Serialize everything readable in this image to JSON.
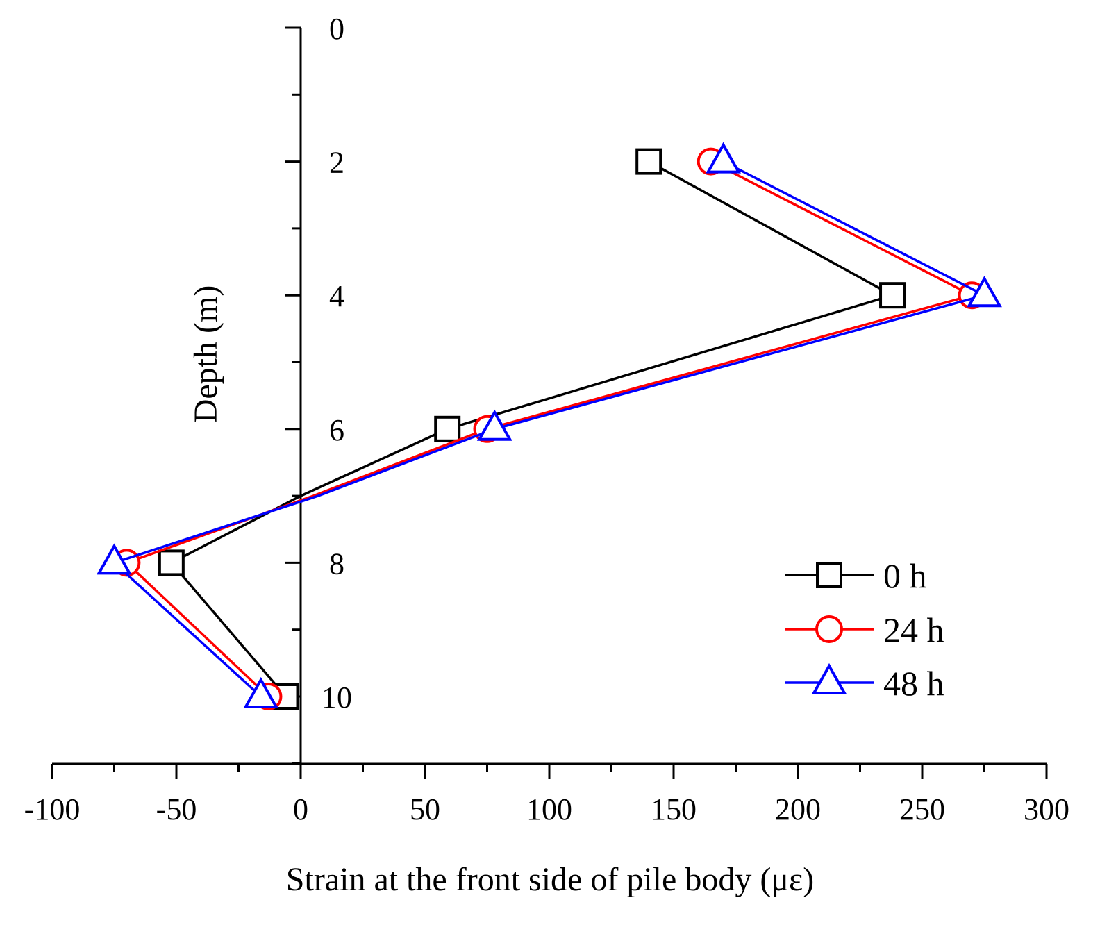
{
  "chart_data": {
    "type": "line",
    "xlabel": "Strain at the front side of pile body (με)",
    "ylabel": "Depth (m)",
    "xlim": [
      -100,
      300
    ],
    "ylim": [
      0,
      11
    ],
    "y_inverted": true,
    "x_ticks": [
      -100,
      -50,
      0,
      50,
      100,
      150,
      200,
      250,
      300
    ],
    "x_tick_labels": [
      "-100",
      "-50",
      "0",
      "50",
      "100",
      "150",
      "200",
      "250",
      "300"
    ],
    "y_ticks": [
      0,
      2,
      4,
      6,
      8,
      10
    ],
    "y_tick_labels": [
      "0",
      "2",
      "4",
      "6",
      "8",
      "10"
    ],
    "y_axis_at_x": 0,
    "grid": false,
    "legend_position": "bottom-right",
    "series": [
      {
        "name": "0 h",
        "color": "#000000",
        "marker": "square",
        "points": [
          [
            140,
            2
          ],
          [
            238,
            4
          ],
          [
            59,
            6
          ],
          [
            0,
            7
          ],
          [
            -52,
            8
          ],
          [
            -6,
            10
          ]
        ]
      },
      {
        "name": "24 h",
        "color": "#ff0000",
        "marker": "circle",
        "points": [
          [
            165,
            2
          ],
          [
            270,
            4
          ],
          [
            75,
            6
          ],
          [
            5,
            7
          ],
          [
            -70,
            8
          ],
          [
            -13,
            10
          ]
        ]
      },
      {
        "name": "48 h",
        "color": "#0000ff",
        "marker": "triangle",
        "points": [
          [
            170,
            2
          ],
          [
            275,
            4
          ],
          [
            78,
            6
          ],
          [
            7,
            7
          ],
          [
            -75,
            8
          ],
          [
            -16,
            10
          ]
        ]
      }
    ]
  }
}
